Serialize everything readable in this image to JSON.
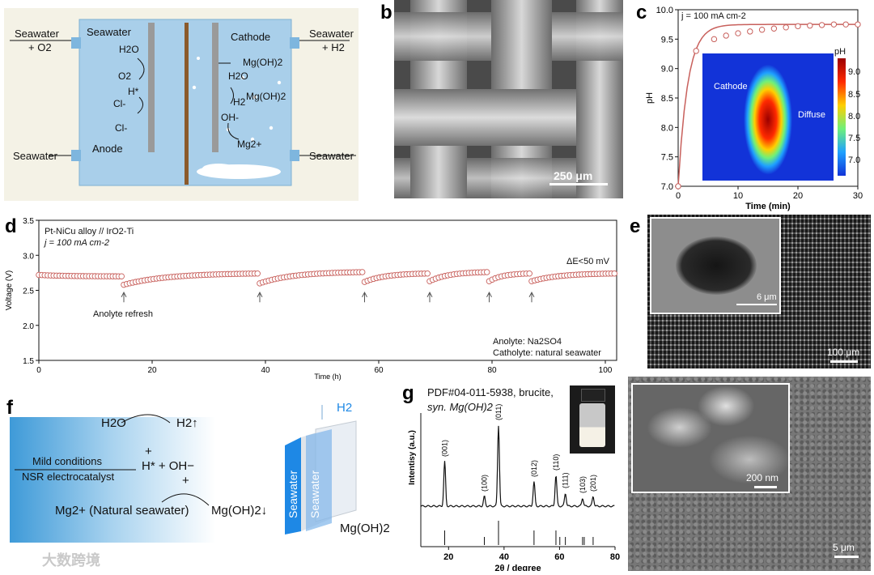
{
  "panels": {
    "a": "a",
    "b": "b",
    "c": "c",
    "d": "d",
    "e": "e",
    "f": "f",
    "g": "g"
  },
  "panel_a": {
    "left_top_label": "Seawater",
    "left_top_label_line2": "+ O2",
    "right_top_label": "Seawater",
    "right_top_label_line2": "+ H2",
    "left_bottom_label": "Seawater",
    "right_bottom_label": "Seawater",
    "seawater_inside": "Seawater",
    "cathode": "Cathode",
    "anode": "Anode",
    "species_left": [
      "H2O",
      "O2",
      "H*",
      "Cl-",
      "Cl-"
    ],
    "species_right": [
      "Mg(OH)2",
      "H2O",
      "H2",
      "Mg(OH)2",
      "OH-",
      "Mg2+"
    ]
  },
  "panel_b": {
    "scale_bar": "250 μm"
  },
  "panel_c": {
    "annotation": "j = 100 mA cm-2",
    "map_labels": {
      "cathode": "Cathode",
      "diffuse": "Diffuse",
      "colorbar_title": "pH"
    },
    "colorbar_ticks": [
      "9.0",
      "8.5",
      "8.0",
      "7.5",
      "7.0"
    ]
  },
  "panel_d": {
    "legend_line1": "Pt-NiCu alloy // IrO2-Ti",
    "legend_line2": "j = 100 mA cm-2",
    "delta_e": "ΔE<50 mV",
    "arrow_label": "Anolyte refresh",
    "note_line1": "Anolyte: Na2SO4",
    "note_line2": "Catholyte: natural seawater"
  },
  "panel_e": {
    "inset_scale": "6 μm",
    "main_scale": "100 μm"
  },
  "panel_f": {
    "h2o": "H2O",
    "h2": "H2↑",
    "plus1": "+",
    "hoh": "H* + OH−",
    "plus2": "+",
    "mild": "Mild conditions",
    "nsr": "NSR electrocatalyst",
    "mg": "Mg2+ (Natural seawater)",
    "mgoh": "Mg(OH)2↓",
    "h2_top": "H2",
    "mgoh_right": "Mg(OH)2",
    "seawater1": "Seawater",
    "seawater2": "Seawater"
  },
  "panel_g": {
    "title_line1": "PDF#04-011-5938, brucite,",
    "title_line2": "syn. Mg(OH)2",
    "inset_scale": "200 nm",
    "main_scale": "5 μm"
  },
  "watermark": "大数跨境",
  "chart_data": [
    {
      "type": "line",
      "panel": "c",
      "x": [
        0,
        3,
        6,
        8,
        10,
        12,
        14,
        16,
        18,
        20,
        22,
        24,
        26,
        28,
        30
      ],
      "y": [
        7.0,
        9.3,
        9.5,
        9.56,
        9.6,
        9.63,
        9.66,
        9.68,
        9.7,
        9.72,
        9.73,
        9.74,
        9.75,
        9.75,
        9.75
      ],
      "xlabel": "Time (min)",
      "ylabel": "pH",
      "xlim": [
        0,
        30
      ],
      "ylim": [
        7.0,
        10.0
      ],
      "xticks": [
        0,
        10,
        20,
        30
      ],
      "yticks": [
        7.0,
        7.5,
        8.0,
        8.5,
        9.0,
        9.5,
        10.0
      ],
      "color": "#c8605c"
    },
    {
      "type": "scatter",
      "panel": "d",
      "x_segments": [
        [
          0,
          15
        ],
        [
          15,
          39
        ],
        [
          39,
          57.5
        ],
        [
          57.5,
          69
        ],
        [
          69,
          79.5
        ],
        [
          79.5,
          87
        ],
        [
          87,
          102
        ]
      ],
      "y_start": [
        2.72,
        2.58,
        2.6,
        2.62,
        2.63,
        2.63,
        2.63
      ],
      "y_end": [
        2.7,
        2.74,
        2.76,
        2.74,
        2.76,
        2.74,
        2.74
      ],
      "refresh_times": [
        15,
        39,
        57.5,
        69,
        79.5,
        87
      ],
      "xlabel": "Time (h)",
      "ylabel": "Voltage (V)",
      "xlim": [
        0,
        102
      ],
      "ylim": [
        1.5,
        3.5
      ],
      "xticks": [
        0,
        20,
        40,
        60,
        80,
        100
      ],
      "yticks": [
        1.5,
        2.0,
        2.5,
        3.0,
        3.5
      ],
      "color": "#c8605c"
    },
    {
      "type": "line",
      "panel": "g",
      "xlabel": "2θ / degree",
      "ylabel": "Intentisy (a.u.)",
      "xlim": [
        10,
        80
      ],
      "xticks": [
        20,
        40,
        60,
        80
      ],
      "peaks": [
        {
          "x": 18.6,
          "h": 0.55,
          "label": "(001)"
        },
        {
          "x": 32.9,
          "h": 0.12,
          "label": "(100)"
        },
        {
          "x": 38.0,
          "h": 1.0,
          "label": "(011)"
        },
        {
          "x": 50.8,
          "h": 0.3,
          "label": "(012)"
        },
        {
          "x": 58.7,
          "h": 0.38,
          "label": "(110)"
        },
        {
          "x": 62.1,
          "h": 0.16,
          "label": "(111)"
        },
        {
          "x": 68.3,
          "h": 0.1,
          "label": "(103)"
        },
        {
          "x": 72.1,
          "h": 0.12,
          "label": "(201)"
        }
      ],
      "reference_sticks": [
        18.6,
        32.9,
        38.0,
        50.8,
        58.7,
        60.1,
        62.1,
        68.3,
        68.9,
        72.1
      ],
      "color": "#111111"
    }
  ]
}
